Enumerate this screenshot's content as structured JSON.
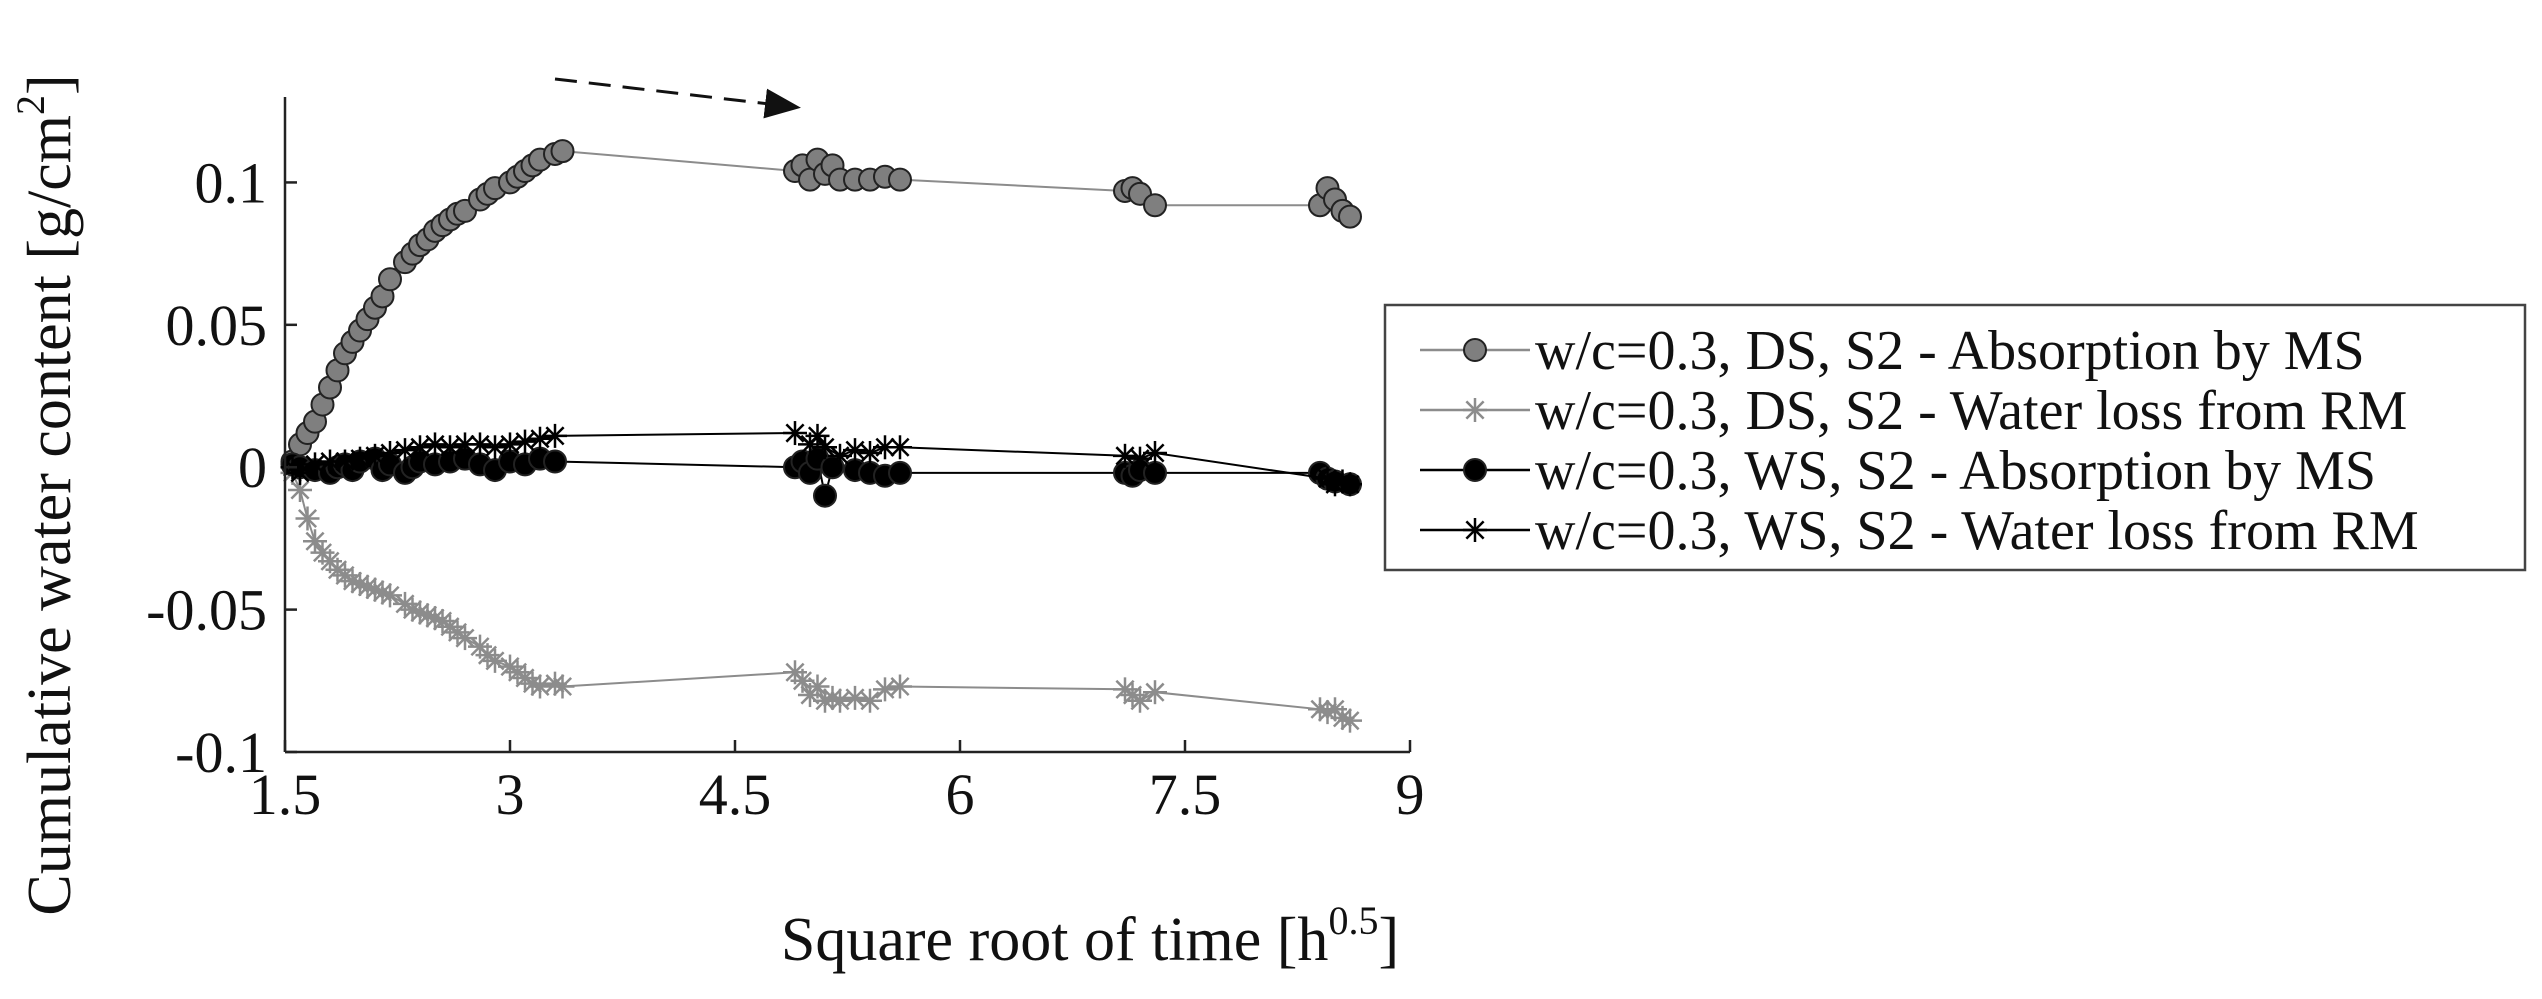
{
  "chart_data": {
    "type": "scatter",
    "xlabel": {
      "main": "Square root of time [h",
      "sup": "0.5",
      "tail": "]"
    },
    "ylabel": {
      "main": "Cumulative water content [g/cm",
      "sup": "2",
      "tail": "]"
    },
    "xlim": [
      1.5,
      9
    ],
    "ylim": [
      -0.1,
      0.13
    ],
    "xticks": [
      1.5,
      3,
      4.5,
      6,
      7.5,
      9
    ],
    "xtick_labels": [
      "1.5",
      "3",
      "4.5",
      "6",
      "7.5",
      "9"
    ],
    "yticks": [
      -0.1,
      -0.05,
      0,
      0.05,
      0.1
    ],
    "ytick_labels": [
      "-0.1",
      "-0.05",
      "0",
      "0.05",
      "0.1"
    ],
    "grid": false,
    "legend_position": "right",
    "annotation": "dashed arrow pointing right above plot",
    "series": [
      {
        "name": "w/c=0.3, DS, S2 - Absorption by MS",
        "marker": "circle-filled",
        "color": "#7f7f7f",
        "line_color": "#8c8c8c",
        "x": [
          1.55,
          1.6,
          1.65,
          1.7,
          1.75,
          1.8,
          1.85,
          1.9,
          1.95,
          2.0,
          2.05,
          2.1,
          2.15,
          2.2,
          2.3,
          2.35,
          2.4,
          2.45,
          2.5,
          2.55,
          2.6,
          2.65,
          2.7,
          2.8,
          2.85,
          2.9,
          3.0,
          3.05,
          3.1,
          3.15,
          3.2,
          3.3,
          3.35,
          4.9,
          4.95,
          5.0,
          5.05,
          5.1,
          5.15,
          5.2,
          5.3,
          5.4,
          5.5,
          5.6,
          7.1,
          7.15,
          7.2,
          7.3,
          8.4,
          8.45,
          8.5,
          8.55,
          8.6
        ],
        "y": [
          0.002,
          0.008,
          0.012,
          0.016,
          0.022,
          0.028,
          0.034,
          0.04,
          0.044,
          0.048,
          0.052,
          0.056,
          0.06,
          0.066,
          0.072,
          0.075,
          0.078,
          0.08,
          0.083,
          0.085,
          0.087,
          0.089,
          0.09,
          0.094,
          0.096,
          0.098,
          0.1,
          0.102,
          0.104,
          0.106,
          0.108,
          0.11,
          0.111,
          0.104,
          0.106,
          0.101,
          0.108,
          0.103,
          0.106,
          0.101,
          0.101,
          0.101,
          0.102,
          0.101,
          0.097,
          0.098,
          0.096,
          0.092,
          0.092,
          0.098,
          0.094,
          0.09,
          0.088
        ]
      },
      {
        "name": "w/c=0.3, DS, S2 - Water loss from RM",
        "marker": "asterisk",
        "color": "#8c8c8c",
        "line_color": "#8c8c8c",
        "x": [
          1.55,
          1.6,
          1.65,
          1.7,
          1.75,
          1.8,
          1.85,
          1.9,
          1.95,
          2.0,
          2.05,
          2.1,
          2.15,
          2.2,
          2.3,
          2.35,
          2.4,
          2.45,
          2.5,
          2.55,
          2.6,
          2.65,
          2.7,
          2.8,
          2.85,
          2.9,
          3.0,
          3.05,
          3.1,
          3.15,
          3.2,
          3.3,
          3.35,
          4.9,
          4.95,
          5.0,
          5.05,
          5.1,
          5.15,
          5.2,
          5.3,
          5.4,
          5.5,
          5.6,
          7.1,
          7.15,
          7.2,
          7.3,
          8.4,
          8.45,
          8.5,
          8.55,
          8.6
        ],
        "y": [
          -0.002,
          -0.008,
          -0.018,
          -0.026,
          -0.03,
          -0.033,
          -0.036,
          -0.038,
          -0.04,
          -0.041,
          -0.042,
          -0.043,
          -0.044,
          -0.045,
          -0.048,
          -0.05,
          -0.051,
          -0.052,
          -0.053,
          -0.054,
          -0.056,
          -0.058,
          -0.06,
          -0.063,
          -0.066,
          -0.068,
          -0.07,
          -0.072,
          -0.074,
          -0.076,
          -0.077,
          -0.076,
          -0.077,
          -0.072,
          -0.075,
          -0.08,
          -0.077,
          -0.082,
          -0.081,
          -0.082,
          -0.081,
          -0.082,
          -0.078,
          -0.077,
          -0.078,
          -0.08,
          -0.082,
          -0.079,
          -0.085,
          -0.086,
          -0.085,
          -0.088,
          -0.089
        ]
      },
      {
        "name": "w/c=0.3, WS, S2 - Absorption by MS",
        "marker": "circle-filled",
        "color": "#000000",
        "line_color": "#000000",
        "x": [
          1.55,
          1.6,
          1.7,
          1.8,
          1.85,
          1.9,
          1.95,
          2.0,
          2.1,
          2.15,
          2.2,
          2.3,
          2.35,
          2.4,
          2.5,
          2.6,
          2.7,
          2.8,
          2.9,
          3.0,
          3.1,
          3.2,
          3.3,
          4.9,
          4.95,
          5.0,
          5.05,
          5.1,
          5.15,
          5.3,
          5.4,
          5.5,
          5.6,
          7.1,
          7.15,
          7.2,
          7.3,
          8.4,
          8.45,
          8.5,
          8.6
        ],
        "y": [
          0.001,
          0.0,
          -0.001,
          -0.002,
          0.0,
          0.001,
          -0.001,
          0.002,
          0.003,
          -0.001,
          0.001,
          -0.002,
          0.0,
          0.002,
          0.001,
          0.002,
          0.003,
          0.001,
          -0.001,
          0.002,
          0.001,
          0.003,
          0.002,
          0.0,
          0.002,
          -0.002,
          0.003,
          -0.01,
          0.0,
          -0.001,
          -0.002,
          -0.003,
          -0.002,
          -0.002,
          -0.003,
          -0.001,
          -0.002,
          -0.002,
          -0.004,
          -0.005,
          -0.006
        ]
      },
      {
        "name": "w/c=0.3, WS, S2 - Water loss from RM",
        "marker": "asterisk",
        "color": "#000000",
        "line_color": "#000000",
        "x": [
          1.55,
          1.6,
          1.7,
          1.8,
          1.9,
          2.0,
          2.1,
          2.2,
          2.3,
          2.4,
          2.5,
          2.6,
          2.7,
          2.8,
          2.9,
          3.0,
          3.1,
          3.2,
          3.3,
          4.9,
          5.0,
          5.05,
          5.1,
          5.2,
          5.3,
          5.4,
          5.5,
          5.6,
          7.1,
          7.2,
          7.3,
          8.45,
          8.5,
          8.55,
          8.6
        ],
        "y": [
          0.0,
          -0.002,
          0.001,
          0.002,
          0.002,
          0.003,
          0.004,
          0.005,
          0.006,
          0.007,
          0.008,
          0.007,
          0.008,
          0.008,
          0.007,
          0.008,
          0.009,
          0.01,
          0.011,
          0.012,
          0.008,
          0.011,
          0.007,
          0.004,
          0.006,
          0.005,
          0.007,
          0.007,
          0.004,
          0.003,
          0.005,
          -0.004,
          -0.006,
          -0.005,
          -0.006
        ]
      }
    ]
  }
}
